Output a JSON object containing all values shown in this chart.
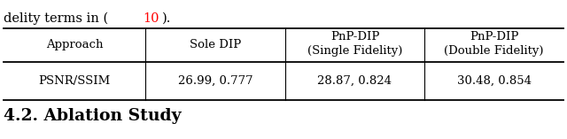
{
  "top_ref_color": "#ff0000",
  "col_headers_line1": [
    "Approach",
    "Sole DIP",
    "PnP-DIP",
    "PnP-DIP"
  ],
  "col_headers_line2": [
    "",
    "",
    "(Single Fidelity)",
    "(Double Fidelity)"
  ],
  "row_label": "PSNR/SSIM",
  "row_values": [
    "26.99, 0.777",
    "28.87, 0.824",
    "30.48, 0.854"
  ],
  "section_title": "4.2. Ablation Study",
  "background_color": "#ffffff",
  "text_color": "#000000",
  "font_size_table": 9.5,
  "font_size_top": 10.5,
  "font_size_section": 13.5
}
